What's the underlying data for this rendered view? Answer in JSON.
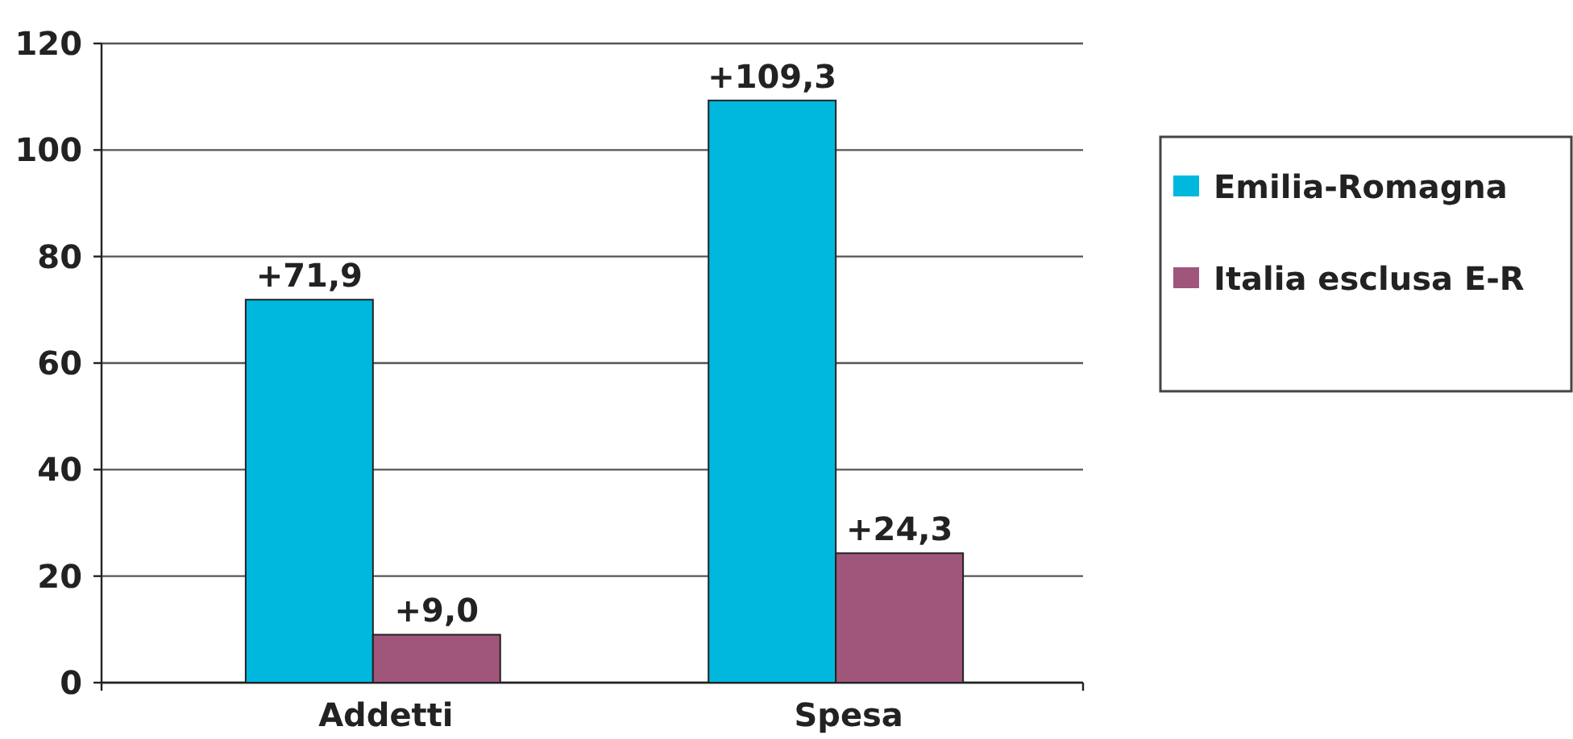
{
  "chart_data": {
    "type": "bar",
    "categories": [
      "Addetti",
      "Spesa"
    ],
    "series": [
      {
        "name": "Emilia-Romagna",
        "color": "#00b8de",
        "values": [
          71.9,
          109.3
        ],
        "value_labels": [
          "+71,9",
          "+109,3"
        ]
      },
      {
        "name": "Italia esclusa E-R",
        "color": "#a0567a",
        "values": [
          9.0,
          24.3
        ],
        "value_labels": [
          "+9,0",
          "+24,3"
        ]
      }
    ],
    "ylim": [
      0,
      120
    ],
    "yticks": [
      0,
      20,
      40,
      60,
      80,
      100,
      120
    ],
    "grid": "y",
    "legend": "right"
  }
}
